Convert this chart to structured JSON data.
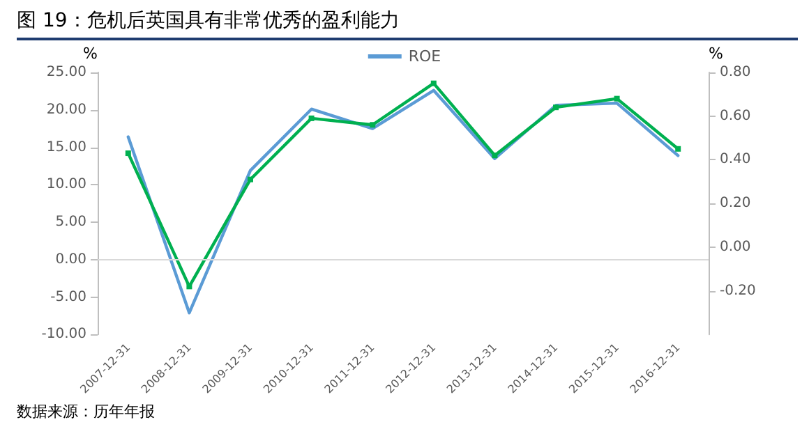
{
  "chart_data": {
    "type": "line",
    "title": "图 19：危机后英国具有非常优秀的盈利能力",
    "ylabel": "%",
    "y2label": "%",
    "annotations": [
      "数据来源：历年年报"
    ],
    "categories": [
      "2007-12-31",
      "2008-12-31",
      "2009-12-31",
      "2010-12-31",
      "2011-12-31",
      "2012-12-31",
      "2013-12-31",
      "2014-12-31",
      "2015-12-31",
      "2016-12-31"
    ],
    "series": [
      {
        "name": "ROE",
        "color": "#5b9bd5",
        "values": [
          16.4,
          -7.1,
          11.9,
          20.1,
          17.5,
          22.6,
          13.5,
          20.6,
          20.9,
          13.9
        ]
      },
      {
        "color": "#00b050",
        "axis": "y2",
        "marker": "square",
        "values": [
          0.43,
          -0.18,
          0.31,
          0.59,
          0.56,
          0.75,
          0.42,
          0.64,
          0.68,
          0.45
        ]
      }
    ],
    "ylim": [
      -10,
      25
    ],
    "yticks": [
      {
        "value": -10,
        "label": "-10.00"
      },
      {
        "value": -5,
        "label": "-5.00"
      },
      {
        "value": 0,
        "label": "0.00"
      },
      {
        "value": 5,
        "label": "5.00"
      },
      {
        "value": 10,
        "label": "10.00"
      },
      {
        "value": 15,
        "label": "15.00"
      },
      {
        "value": 20,
        "label": "20.00"
      },
      {
        "value": 25,
        "label": "25.00"
      }
    ],
    "y2lim": [
      -0.4,
      0.8
    ],
    "y2ticks": [
      {
        "value": -0.2,
        "label": "-0.20"
      },
      {
        "value": 0,
        "label": "0.00"
      },
      {
        "value": 0.2,
        "label": "0.20"
      },
      {
        "value": 0.4,
        "label": "0.40"
      },
      {
        "value": 0.6,
        "label": "0.60"
      },
      {
        "value": 0.8,
        "label": "0.80"
      }
    ],
    "ref_lines": [
      {
        "axis": "y",
        "value": 0,
        "color": "#d9d9d9"
      }
    ],
    "grid": false,
    "legend": "top",
    "marker": "none",
    "line_style": "solid"
  }
}
